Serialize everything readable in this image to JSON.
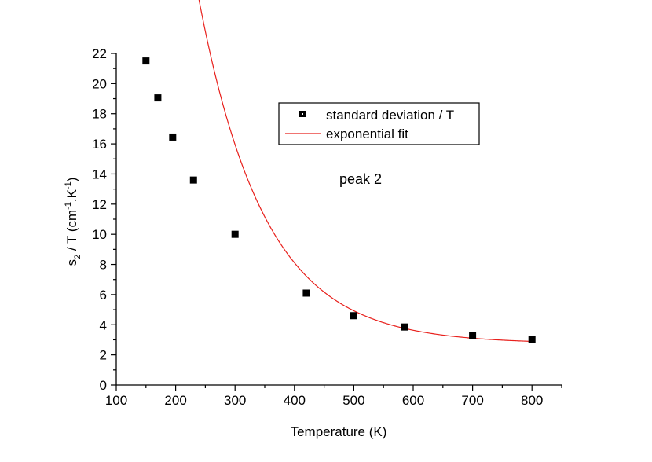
{
  "chart_data": {
    "type": "scatter",
    "xlabel": "Temperature (K)",
    "ylabel": {
      "base": "s",
      "base_sub": "2",
      "mid": " / T (cm",
      "mid_sup": "-1",
      "dot": ".K",
      "end_sup": "-1",
      "close": ")"
    },
    "xlim": [
      100,
      850
    ],
    "ylim": [
      0,
      22
    ],
    "x_ticks": [
      100,
      200,
      300,
      400,
      500,
      600,
      700,
      800
    ],
    "y_ticks": [
      0,
      2,
      4,
      6,
      8,
      10,
      12,
      14,
      16,
      18,
      20,
      22
    ],
    "x_minor_step": 50,
    "y_minor_step": 1,
    "grid": false,
    "legend_position": "top-right",
    "annotation": "peak 2",
    "series": [
      {
        "name": "standard deviation / T",
        "kind": "scatter",
        "marker": "square",
        "color": "#000000",
        "x": [
          150,
          170,
          195,
          230,
          300,
          420,
          500,
          585,
          700,
          800
        ],
        "y": [
          21.5,
          19.05,
          16.45,
          13.6,
          10.0,
          6.1,
          4.6,
          3.85,
          3.3,
          3.0
        ]
      },
      {
        "name": "exponential fit",
        "kind": "line",
        "color": "#e8201c",
        "model": {
          "y0": 2.75,
          "A": 80.0,
          "t": 111.0
        }
      }
    ]
  }
}
